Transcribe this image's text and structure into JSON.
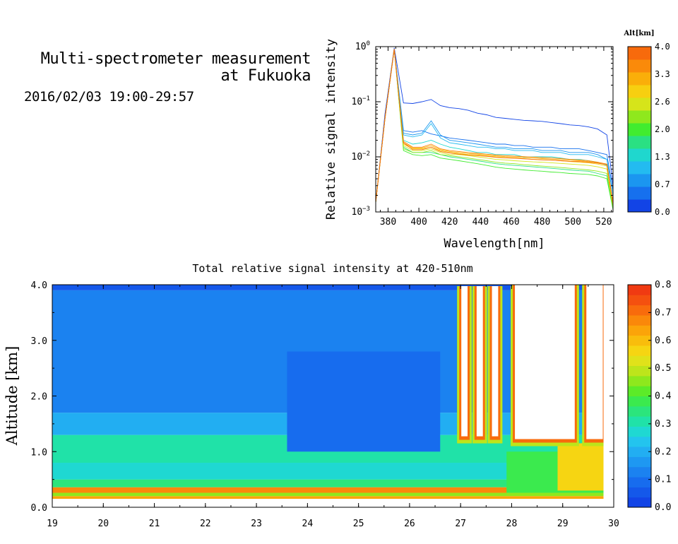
{
  "header": {
    "title_line1": "Multi-spectrometer measurement",
    "title_line2": "at Fukuoka",
    "subtitle": "2016/02/03 19:00-29:57"
  },
  "chart_data": [
    {
      "type": "line",
      "xlabel": "Wavelength[nm]",
      "ylabel": "Relative signal intensity",
      "xlim": [
        372,
        526
      ],
      "ylim": [
        0.001,
        1
      ],
      "yscale": "log",
      "x_ticks": [
        380,
        400,
        420,
        440,
        460,
        480,
        500,
        520
      ],
      "y_ticks": [
        {
          "value": 0.001,
          "base": "10",
          "exp": "−3"
        },
        {
          "value": 0.01,
          "base": "10",
          "exp": "−2"
        },
        {
          "value": 0.1,
          "base": "10",
          "exp": "−1"
        },
        {
          "value": 1,
          "base": "10",
          "exp": "0"
        }
      ],
      "colorbar": {
        "title": "Alt[km]",
        "ticks": [
          "0.0",
          "0.7",
          "1.3",
          "2.0",
          "2.6",
          "3.3",
          "4.0"
        ],
        "colors": [
          "#1244e6",
          "#1670ee",
          "#1b96f0",
          "#23bbf0",
          "#1fd7ce",
          "#2ae083",
          "#41ec2f",
          "#8fe81d",
          "#d6e41a",
          "#f7cf10",
          "#faae09",
          "#fa8a0a",
          "#f76a0c"
        ]
      },
      "x": [
        372,
        378,
        384,
        390,
        396,
        402,
        408,
        414,
        420,
        426,
        432,
        438,
        444,
        450,
        456,
        462,
        468,
        474,
        480,
        486,
        492,
        498,
        504,
        510,
        516,
        522,
        526
      ],
      "series": [
        {
          "color": "#1244e6",
          "values": [
            0.0015,
            0.06,
            0.95,
            0.095,
            0.093,
            0.1,
            0.11,
            0.085,
            0.078,
            0.075,
            0.07,
            0.062,
            0.058,
            0.052,
            0.05,
            0.048,
            0.046,
            0.045,
            0.044,
            0.042,
            0.04,
            0.038,
            0.037,
            0.035,
            0.032,
            0.025,
            0.003
          ]
        },
        {
          "color": "#1670ee",
          "values": [
            0.0015,
            0.05,
            0.9,
            0.03,
            0.028,
            0.03,
            0.026,
            0.024,
            0.022,
            0.021,
            0.02,
            0.019,
            0.018,
            0.017,
            0.017,
            0.016,
            0.016,
            0.015,
            0.015,
            0.015,
            0.014,
            0.014,
            0.014,
            0.013,
            0.012,
            0.011,
            0.0025
          ]
        },
        {
          "color": "#1b96f0",
          "values": [
            0.0015,
            0.05,
            0.9,
            0.027,
            0.025,
            0.027,
            0.045,
            0.025,
            0.02,
            0.019,
            0.018,
            0.017,
            0.016,
            0.015,
            0.015,
            0.014,
            0.014,
            0.014,
            0.013,
            0.013,
            0.013,
            0.012,
            0.012,
            0.012,
            0.011,
            0.009,
            0.002
          ]
        },
        {
          "color": "#23bbf0",
          "values": [
            0.0015,
            0.05,
            0.9,
            0.025,
            0.023,
            0.025,
            0.04,
            0.022,
            0.018,
            0.017,
            0.016,
            0.015,
            0.015,
            0.014,
            0.014,
            0.013,
            0.013,
            0.013,
            0.012,
            0.012,
            0.012,
            0.011,
            0.011,
            0.011,
            0.01,
            0.009,
            0.002
          ]
        },
        {
          "color": "#1fd7ce",
          "values": [
            0.0015,
            0.05,
            0.9,
            0.02,
            0.017,
            0.018,
            0.02,
            0.017,
            0.015,
            0.014,
            0.013,
            0.012,
            0.012,
            0.011,
            0.011,
            0.011,
            0.01,
            0.01,
            0.01,
            0.01,
            0.0095,
            0.009,
            0.009,
            0.0085,
            0.008,
            0.007,
            0.0015
          ]
        },
        {
          "color": "#2ae083",
          "values": [
            0.0015,
            0.05,
            0.9,
            0.015,
            0.012,
            0.012,
            0.012,
            0.011,
            0.01,
            0.0095,
            0.009,
            0.0085,
            0.008,
            0.0075,
            0.0072,
            0.007,
            0.0068,
            0.0066,
            0.0064,
            0.0062,
            0.006,
            0.0058,
            0.0056,
            0.0055,
            0.005,
            0.0045,
            0.0012
          ]
        },
        {
          "color": "#41ec2f",
          "values": [
            0.0015,
            0.05,
            0.9,
            0.013,
            0.011,
            0.0105,
            0.011,
            0.0095,
            0.009,
            0.0085,
            0.008,
            0.0075,
            0.007,
            0.0065,
            0.0062,
            0.006,
            0.0058,
            0.0056,
            0.0055,
            0.0053,
            0.0052,
            0.005,
            0.0049,
            0.0048,
            0.0045,
            0.004,
            0.0011
          ]
        },
        {
          "color": "#8fe81d",
          "values": [
            0.0015,
            0.05,
            0.9,
            0.014,
            0.012,
            0.012,
            0.013,
            0.011,
            0.0105,
            0.01,
            0.0095,
            0.009,
            0.0085,
            0.008,
            0.0077,
            0.0075,
            0.0072,
            0.007,
            0.0068,
            0.0066,
            0.0064,
            0.0062,
            0.006,
            0.0058,
            0.0055,
            0.005,
            0.0012
          ]
        },
        {
          "color": "#d6e41a",
          "values": [
            0.0015,
            0.05,
            0.9,
            0.016,
            0.013,
            0.013,
            0.014,
            0.012,
            0.011,
            0.011,
            0.0105,
            0.01,
            0.0095,
            0.009,
            0.0088,
            0.0085,
            0.0083,
            0.0081,
            0.008,
            0.0078,
            0.0076,
            0.0074,
            0.0072,
            0.007,
            0.0066,
            0.006,
            0.0013
          ]
        },
        {
          "color": "#f7cf10",
          "values": [
            0.0015,
            0.05,
            0.9,
            0.017,
            0.014,
            0.014,
            0.015,
            0.013,
            0.012,
            0.0115,
            0.011,
            0.0108,
            0.0104,
            0.01,
            0.0097,
            0.0095,
            0.0093,
            0.009,
            0.0089,
            0.0087,
            0.0085,
            0.0082,
            0.008,
            0.0078,
            0.0074,
            0.0068,
            0.0014
          ]
        },
        {
          "color": "#faae09",
          "values": [
            0.0015,
            0.05,
            0.9,
            0.018,
            0.0145,
            0.0145,
            0.016,
            0.0135,
            0.0125,
            0.012,
            0.0115,
            0.0112,
            0.0108,
            0.0104,
            0.0101,
            0.0099,
            0.0097,
            0.0095,
            0.0093,
            0.0091,
            0.0089,
            0.0087,
            0.0085,
            0.0082,
            0.0078,
            0.0072,
            0.0014
          ]
        },
        {
          "color": "#fa8a0a",
          "values": [
            0.0015,
            0.05,
            0.9,
            0.019,
            0.015,
            0.015,
            0.017,
            0.014,
            0.013,
            0.0125,
            0.012,
            0.0116,
            0.0112,
            0.0108,
            0.0105,
            0.0103,
            0.0101,
            0.0099,
            0.0097,
            0.0095,
            0.0093,
            0.009,
            0.0088,
            0.0085,
            0.008,
            0.0074,
            0.0015
          ]
        },
        {
          "color": "#f76a0c",
          "values": [
            0.0015,
            0.05,
            0.9,
            0.018,
            0.0135,
            0.0135,
            0.015,
            0.0125,
            0.0118,
            0.0112,
            0.0108,
            0.0105,
            0.0102,
            0.0098,
            0.0096,
            0.0094,
            0.0092,
            0.009,
            0.0088,
            0.0087,
            0.0085,
            0.0083,
            0.0082,
            0.008,
            0.0077,
            0.0072,
            0.0014
          ]
        }
      ]
    },
    {
      "type": "heatmap",
      "title": "Total relative signal intensity at 420-510nm",
      "ylabel": "Altitude [km]",
      "xlabel": "",
      "xlim": [
        19,
        30
      ],
      "ylim": [
        0,
        4
      ],
      "x_ticks": [
        "19",
        "20",
        "21",
        "22",
        "23",
        "24",
        "25",
        "26",
        "27",
        "28",
        "29",
        "30"
      ],
      "y_ticks": [
        "0.0",
        "1.0",
        "2.0",
        "3.0",
        "4.0"
      ],
      "colorbar": {
        "range": [
          0,
          0.8
        ],
        "ticks": [
          "0.0",
          "0.1",
          "0.2",
          "0.3",
          "0.4",
          "0.5",
          "0.6",
          "0.7",
          "0.8"
        ],
        "colors": [
          "#1244e6",
          "#1458ea",
          "#176cee",
          "#1b82f0",
          "#1e98f2",
          "#22aef2",
          "#23c4ee",
          "#1fd8d2",
          "#20e2a8",
          "#2be57c",
          "#3bea4e",
          "#5ceb28",
          "#8ee81d",
          "#bde51b",
          "#e0e21a",
          "#f6d512",
          "#f9bd0c",
          "#fba409",
          "#fa880a",
          "#f86b0c",
          "#f4500f",
          "#f03a12"
        ]
      },
      "layers": [
        {
          "alt_from": 0.15,
          "alt_to": 0.2,
          "value": 0.62
        },
        {
          "alt_from": 0.2,
          "alt_to": 0.26,
          "value": 0.45
        },
        {
          "alt_from": 0.26,
          "alt_to": 0.36,
          "value": 0.68
        },
        {
          "alt_from": 0.36,
          "alt_to": 0.5,
          "value": 0.36
        },
        {
          "alt_from": 0.5,
          "alt_to": 0.8,
          "value": 0.26
        },
        {
          "alt_from": 0.8,
          "alt_to": 1.3,
          "value": 0.3
        },
        {
          "alt_from": 1.3,
          "alt_to": 1.7,
          "value": 0.2
        },
        {
          "alt_from": 1.7,
          "alt_to": 3.9,
          "value": 0.14
        },
        {
          "alt_from": 3.9,
          "alt_to": 4.0,
          "value": 0.05
        }
      ],
      "cloud_columns": [
        {
          "x_from": 27.0,
          "x_to": 27.15,
          "cloud_base_km": 1.25
        },
        {
          "x_from": 27.3,
          "x_to": 27.45,
          "cloud_base_km": 1.25
        },
        {
          "x_from": 27.6,
          "x_to": 27.75,
          "cloud_base_km": 1.25
        },
        {
          "x_from": 28.05,
          "x_to": 29.25,
          "cloud_base_km": 1.2
        },
        {
          "x_from": 29.45,
          "x_to": 29.8,
          "cloud_base_km": 1.2
        }
      ]
    }
  ]
}
